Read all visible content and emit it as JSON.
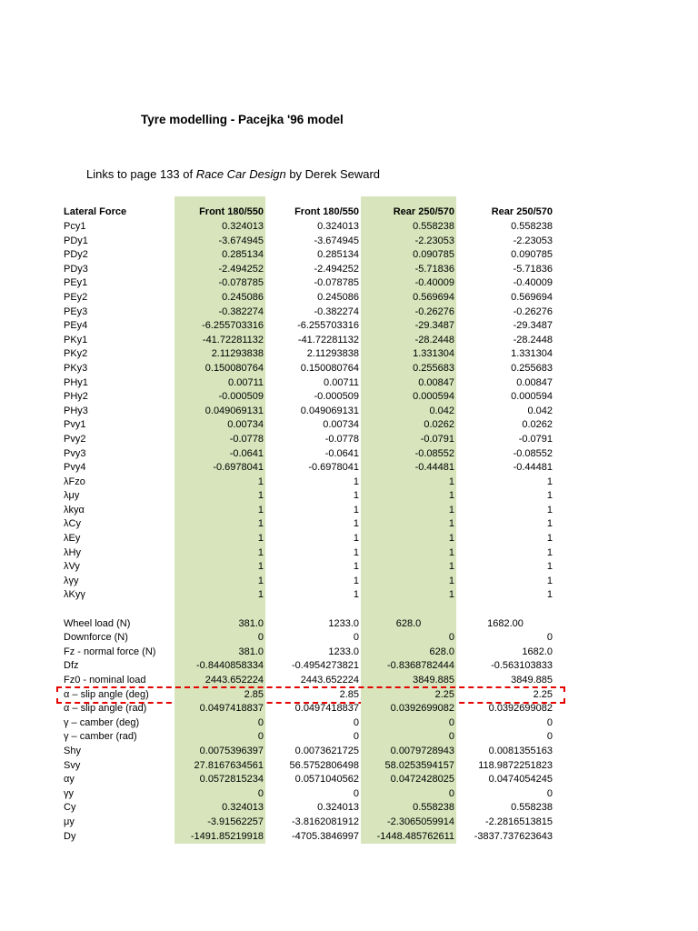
{
  "title": "Tyre modelling - Pacejka '96 model",
  "subtitle": {
    "prefix": "Links to page 133 of ",
    "italic": "Race Car Design",
    "suffix": " by Derek Seward"
  },
  "colors": {
    "column_shade": "#d7e4bc",
    "highlight_border": "#e60000"
  },
  "table": {
    "headers": [
      "Lateral Force",
      "Front 180/550",
      "Front 180/550",
      "Rear 250/570",
      "Rear 250/570"
    ],
    "rows": [
      {
        "label": "Pcy1",
        "values": [
          "0.324013",
          "0.324013",
          "0.558238",
          "0.558238"
        ]
      },
      {
        "label": "PDy1",
        "values": [
          "-3.674945",
          "-3.674945",
          "-2.23053",
          "-2.23053"
        ]
      },
      {
        "label": "PDy2",
        "values": [
          "0.285134",
          "0.285134",
          "0.090785",
          "0.090785"
        ]
      },
      {
        "label": "PDy3",
        "values": [
          "-2.494252",
          "-2.494252",
          "-5.71836",
          "-5.71836"
        ]
      },
      {
        "label": "PEy1",
        "values": [
          "-0.078785",
          "-0.078785",
          "-0.40009",
          "-0.40009"
        ]
      },
      {
        "label": "PEy2",
        "values": [
          "0.245086",
          "0.245086",
          "0.569694",
          "0.569694"
        ]
      },
      {
        "label": "PEy3",
        "values": [
          "-0.382274",
          "-0.382274",
          "-0.26276",
          "-0.26276"
        ]
      },
      {
        "label": "PEy4",
        "values": [
          "-6.255703316",
          "-6.255703316",
          "-29.3487",
          "-29.3487"
        ]
      },
      {
        "label": "PKy1",
        "values": [
          "-41.72281132",
          "-41.72281132",
          "-28.2448",
          "-28.2448"
        ]
      },
      {
        "label": "PKy2",
        "values": [
          "2.11293838",
          "2.11293838",
          "1.331304",
          "1.331304"
        ]
      },
      {
        "label": "PKy3",
        "values": [
          "0.150080764",
          "0.150080764",
          "0.255683",
          "0.255683"
        ]
      },
      {
        "label": "PHy1",
        "values": [
          "0.00711",
          "0.00711",
          "0.00847",
          "0.00847"
        ]
      },
      {
        "label": "PHy2",
        "values": [
          "-0.000509",
          "-0.000509",
          "0.000594",
          "0.000594"
        ]
      },
      {
        "label": "PHy3",
        "values": [
          "0.049069131",
          "0.049069131",
          "0.042",
          "0.042"
        ]
      },
      {
        "label": "Pvy1",
        "values": [
          "0.00734",
          "0.00734",
          "0.0262",
          "0.0262"
        ]
      },
      {
        "label": "Pvy2",
        "values": [
          "-0.0778",
          "-0.0778",
          "-0.0791",
          "-0.0791"
        ]
      },
      {
        "label": "Pvy3",
        "values": [
          "-0.0641",
          "-0.0641",
          "-0.08552",
          "-0.08552"
        ]
      },
      {
        "label": "Pvy4",
        "values": [
          "-0.6978041",
          "-0.6978041",
          "-0.44481",
          "-0.44481"
        ]
      },
      {
        "label": "λFzo",
        "values": [
          "1",
          "1",
          "1",
          "1"
        ]
      },
      {
        "label": "λμy",
        "values": [
          "1",
          "1",
          "1",
          "1"
        ]
      },
      {
        "label": "λkyα",
        "values": [
          "1",
          "1",
          "1",
          "1"
        ]
      },
      {
        "label": "λCy",
        "values": [
          "1",
          "1",
          "1",
          "1"
        ]
      },
      {
        "label": "λEy",
        "values": [
          "1",
          "1",
          "1",
          "1"
        ]
      },
      {
        "label": "λHy",
        "values": [
          "1",
          "1",
          "1",
          "1"
        ]
      },
      {
        "label": "λVy",
        "values": [
          "1",
          "1",
          "1",
          "1"
        ]
      },
      {
        "label": "λγy",
        "values": [
          "1",
          "1",
          "1",
          "1"
        ]
      },
      {
        "label": "λKyγ",
        "values": [
          "1",
          "1",
          "1",
          "1"
        ]
      },
      {
        "spacer": true
      },
      {
        "label": "Wheel load (N)",
        "values": [
          "381.0",
          "1233.0",
          "628.0",
          "1682.00"
        ],
        "align": [
          "right",
          "right",
          "center",
          "center"
        ]
      },
      {
        "label": "Downforce (N)",
        "values": [
          "0",
          "0",
          "0",
          "0"
        ]
      },
      {
        "label": "Fz - normal force (N)",
        "values": [
          "381.0",
          "1233.0",
          "628.0",
          "1682.0"
        ]
      },
      {
        "label": "Dfz",
        "values": [
          "-0.8440858334",
          "-0.4954273821",
          "-0.8368782444",
          "-0.563103833"
        ]
      },
      {
        "label": "Fz0 - nominal load",
        "values": [
          "2443.652224",
          "2443.652224",
          "3849.885",
          "3849.885"
        ]
      },
      {
        "label": "α – slip angle (deg)",
        "values": [
          "2.85",
          "2.85",
          "2.25",
          "2.25"
        ],
        "highlight": true
      },
      {
        "label": "α – slip angle (rad)",
        "values": [
          "0.0497418837",
          "0.0497418837",
          "0.0392699082",
          "0.0392699082"
        ]
      },
      {
        "label": "γ – camber (deg)",
        "values": [
          "0",
          "0",
          "0",
          "0"
        ]
      },
      {
        "label": "γ – camber (rad)",
        "values": [
          "0",
          "0",
          "0",
          "0"
        ]
      },
      {
        "label": "Shy",
        "values": [
          "0.0075396397",
          "0.0073621725",
          "0.0079728943",
          "0.0081355163"
        ]
      },
      {
        "label": "Svy",
        "values": [
          "27.8167634561",
          "56.5752806498",
          "58.0253594157",
          "118.9872251823"
        ]
      },
      {
        "label": "αy",
        "values": [
          "0.0572815234",
          "0.0571040562",
          "0.0472428025",
          "0.0474054245"
        ]
      },
      {
        "label": "γy",
        "values": [
          "0",
          "0",
          "0",
          "0"
        ]
      },
      {
        "label": "Cy",
        "values": [
          "0.324013",
          "0.324013",
          "0.558238",
          "0.558238"
        ]
      },
      {
        "label": "μy",
        "values": [
          "-3.91562257",
          "-3.8162081912",
          "-2.3065059914",
          "-2.2816513815"
        ]
      },
      {
        "label": "Dy",
        "values": [
          "-1491.85219918",
          "-4705.3846997",
          "-1448.485762611",
          "-3837.737623643"
        ]
      }
    ]
  }
}
